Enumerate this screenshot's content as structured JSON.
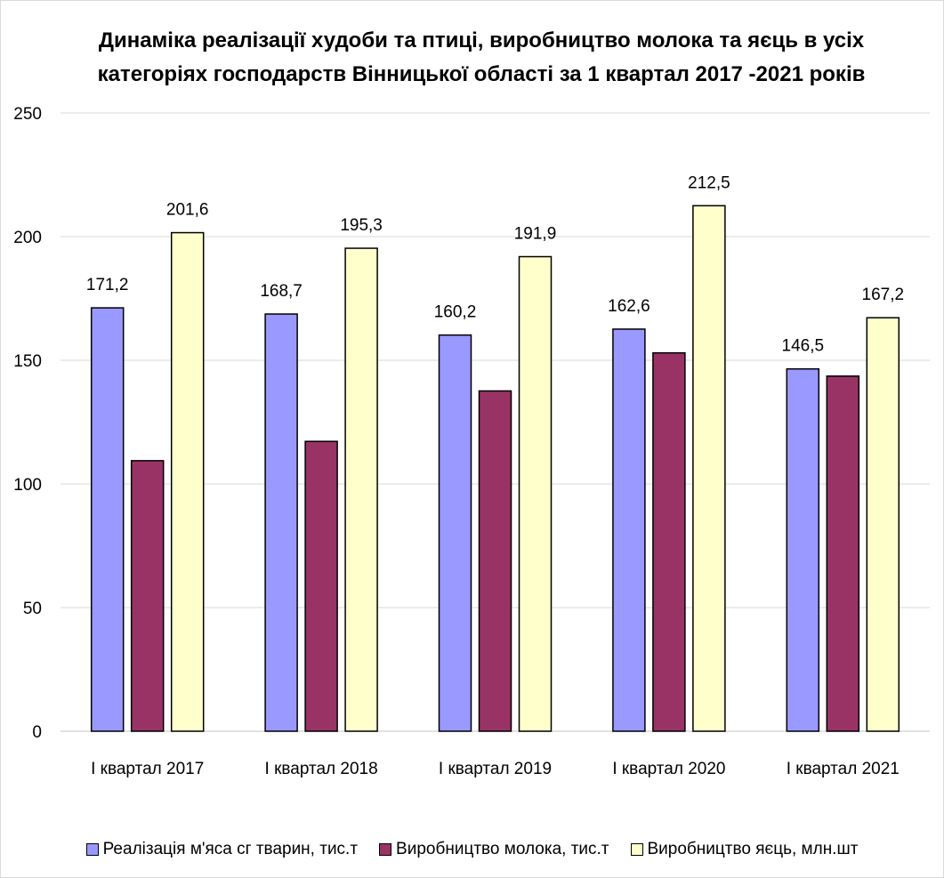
{
  "chart_data": {
    "type": "bar",
    "title_lines": [
      "Динаміка реалізації худоби та птиці, виробництво молока та яєць в усіх",
      "категоріях господарств Вінницької області за 1 квартал 2017 -2021 років"
    ],
    "categories": [
      "І квартал 2017",
      "І квартал 2018",
      "І квартал 2019",
      "І квартал 2020",
      "І квартал 2021"
    ],
    "series": [
      {
        "name": "Реалізація м'яса сг тварин, тис.т",
        "color": "#9999ff",
        "values": [
          171.2,
          168.7,
          160.2,
          162.6,
          146.5
        ],
        "labels": [
          "171,2",
          "168,7",
          "160,2",
          "162,6",
          "146,5"
        ]
      },
      {
        "name": "Виробництво молока, тис.т",
        "color": "#993366",
        "values": [
          109.4,
          117.2,
          137.6,
          153.0,
          143.6
        ],
        "labels": []
      },
      {
        "name": "Виробництво яєць, млн.шт",
        "color": "#ffffcc",
        "values": [
          201.6,
          195.3,
          191.9,
          212.5,
          167.2
        ],
        "labels": [
          "201,6",
          "195,3",
          "191,9",
          "212,5",
          "167,2"
        ]
      }
    ],
    "ylim": [
      0,
      250
    ],
    "yticks": [
      0,
      50,
      100,
      150,
      200,
      250
    ],
    "ytick_labels": [
      "0",
      "50",
      "100",
      "150",
      "200",
      "250"
    ],
    "grid": true,
    "legend_position": "bottom"
  }
}
